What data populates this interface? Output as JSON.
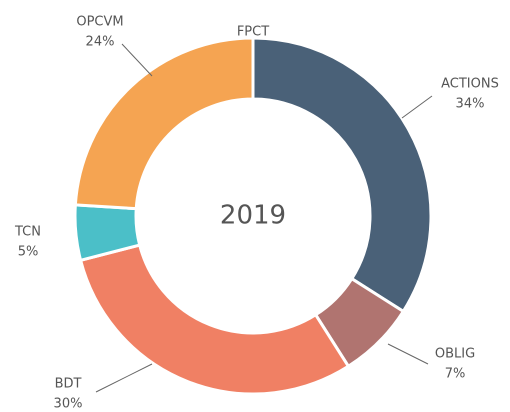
{
  "chart_data": {
    "type": "donut",
    "center_text": "2019",
    "categories": [
      "ACTIONS",
      "OBLIG",
      "BDT",
      "TCN",
      "OPCVM",
      "FPCT"
    ],
    "values": [
      34,
      7,
      30,
      5,
      24,
      0
    ],
    "value_labels": [
      "34%",
      "7%",
      "30%",
      "5%",
      "24%",
      null
    ],
    "colors": [
      "#4a6178",
      "#b07470",
      "#f08064",
      "#4bbfc8",
      "#f5a452",
      "#f5a452"
    ]
  }
}
